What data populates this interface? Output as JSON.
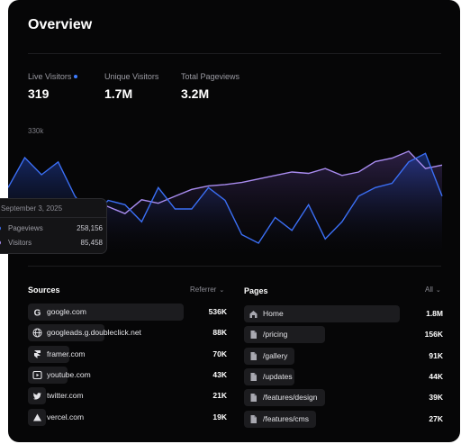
{
  "header": {
    "title": "Overview"
  },
  "stats": [
    {
      "label": "Live Visitors",
      "value": "319"
    },
    {
      "label": "Unique Visitors",
      "value": "1.7M"
    },
    {
      "label": "Total Pageviews",
      "value": "3.2M"
    }
  ],
  "colors": {
    "pageviews": "#3b6ff5",
    "visitors": "#a98cf0",
    "card_bg": "#060607"
  },
  "chart_data": {
    "type": "area",
    "ytick_label": "330k",
    "series": [
      {
        "name": "Pageviews",
        "values": [
          230,
          265,
          245,
          260,
          220,
          195,
          215,
          210,
          190,
          230,
          205,
          205,
          230,
          215,
          175,
          165,
          195,
          180,
          210,
          170,
          190,
          220,
          230,
          235,
          260,
          270,
          220
        ]
      },
      {
        "name": "Visitors",
        "values": [
          170,
          190,
          180,
          175,
          185,
          210,
          200,
          190,
          210,
          205,
          215,
          225,
          230,
          232,
          235,
          240,
          245,
          250,
          248,
          255,
          245,
          250,
          265,
          270,
          280,
          255,
          260
        ]
      }
    ],
    "tooltip": {
      "date": "September 3, 2025",
      "rows": [
        {
          "name": "Pageviews",
          "value": "258,156"
        },
        {
          "name": "Visitors",
          "value": "85,458"
        }
      ]
    }
  },
  "sources": {
    "title": "Sources",
    "filter": "Referrer",
    "items": [
      {
        "label": "google.com",
        "value": "536K",
        "icon": "google-icon",
        "share": 1.0
      },
      {
        "label": "googleads.g.doubleclick.net",
        "value": "88K",
        "icon": "globe-icon",
        "share": 0.164
      },
      {
        "label": "framer.com",
        "value": "70K",
        "icon": "framer-icon",
        "share": 0.131
      },
      {
        "label": "youtube.com",
        "value": "43K",
        "icon": "youtube-icon",
        "share": 0.08
      },
      {
        "label": "twitter.com",
        "value": "21K",
        "icon": "twitter-icon",
        "share": 0.039
      },
      {
        "label": "vercel.com",
        "value": "19K",
        "icon": "vercel-icon",
        "share": 0.035
      }
    ]
  },
  "pages": {
    "title": "Pages",
    "filter": "All",
    "items": [
      {
        "label": "Home",
        "value": "1.8M",
        "icon": "home-icon",
        "share": 1.0
      },
      {
        "label": "/pricing",
        "value": "156K",
        "icon": "file-icon",
        "share": 0.087
      },
      {
        "label": "/gallery",
        "value": "91K",
        "icon": "file-icon",
        "share": 0.051
      },
      {
        "label": "/updates",
        "value": "44K",
        "icon": "file-icon",
        "share": 0.024
      },
      {
        "label": "/features/design",
        "value": "39K",
        "icon": "file-icon",
        "share": 0.022
      },
      {
        "label": "/features/cms",
        "value": "27K",
        "icon": "file-icon",
        "share": 0.015
      }
    ]
  }
}
